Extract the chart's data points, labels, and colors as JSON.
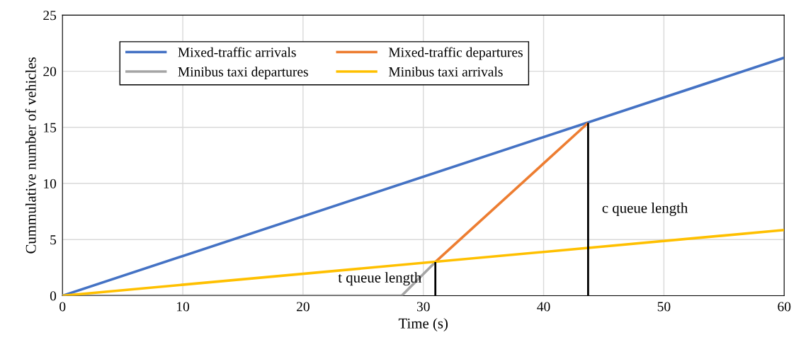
{
  "chart_data": {
    "type": "line",
    "xlabel": "Time (s)",
    "ylabel": "Cummulative number of vehicles",
    "xlim": [
      0,
      60
    ],
    "ylim": [
      0,
      25
    ],
    "xticks": [
      0,
      10,
      20,
      30,
      40,
      50,
      60
    ],
    "yticks": [
      0,
      5,
      10,
      15,
      20,
      25
    ],
    "grid": true,
    "legend": "top left",
    "marker": "none",
    "line_style": "solid",
    "series": [
      {
        "name": "Mixed-traffic arrivals",
        "color": "#4472c4",
        "x": [
          0,
          60
        ],
        "values": [
          0,
          21.2
        ]
      },
      {
        "name": "Mixed-traffic departures",
        "color": "#ed7d31",
        "x": [
          31,
          43.7
        ],
        "values": [
          3,
          15.4
        ]
      },
      {
        "name": "Minibus taxi departures",
        "color": "#a5a5a5",
        "x": [
          0,
          28.2,
          31
        ],
        "values": [
          0,
          0,
          3
        ]
      },
      {
        "name": "Minibus taxi arrivals",
        "color": "#ffc000",
        "x": [
          0,
          60
        ],
        "values": [
          0,
          5.85
        ]
      },
      {
        "color": "#000000",
        "x": [
          43.7,
          43.7
        ],
        "values": [
          0,
          15.4
        ]
      },
      {
        "color": "#000000",
        "x": [
          31,
          31
        ],
        "values": [
          0,
          3
        ]
      }
    ],
    "annotations": [
      "c queue length",
      "t queue length"
    ]
  }
}
